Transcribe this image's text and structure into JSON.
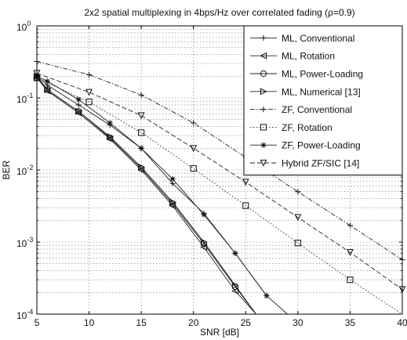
{
  "chart_data": {
    "type": "line",
    "title": "2x2 spatial multiplexing in 4bps/Hz over correlated fading (ρ=0.9)",
    "xlabel": "SNR [dB]",
    "ylabel": "BER",
    "x_scale": "linear",
    "y_scale": "log",
    "xlim": [
      5,
      40
    ],
    "ylim": [
      0.0001,
      1
    ],
    "x_ticks": [
      "5",
      "10",
      "15",
      "20",
      "25",
      "30",
      "35",
      "40"
    ],
    "y_ticks": [
      {
        "value": 1,
        "base": "10",
        "exp": "0"
      },
      {
        "value": 0.1,
        "base": "10",
        "exp": "-1"
      },
      {
        "value": 0.01,
        "base": "10",
        "exp": "-2"
      },
      {
        "value": 0.001,
        "base": "10",
        "exp": "-3"
      },
      {
        "value": 0.0001,
        "base": "10",
        "exp": "-4"
      }
    ],
    "grid": true,
    "legend_position": "top-right",
    "series": [
      {
        "name": "ML, Conventional",
        "marker": "plus",
        "dash": "solid",
        "x": [
          5,
          6,
          9,
          12,
          15,
          18,
          21,
          24,
          27
        ],
        "y": [
          0.2,
          0.15,
          0.08,
          0.042,
          0.02,
          0.0065,
          0.0025,
          0.0007,
          0.00018
        ]
      },
      {
        "name": "ML, Rotation",
        "marker": "triangle-left",
        "dash": "solid",
        "x": [
          5,
          6,
          9,
          12,
          15,
          18,
          21,
          24,
          26
        ],
        "y": [
          0.19,
          0.125,
          0.062,
          0.027,
          0.01,
          0.0032,
          0.00085,
          0.00021,
          0.0001
        ]
      },
      {
        "name": "ML, Power-Loading",
        "marker": "circle",
        "dash": "solid",
        "x": [
          5,
          6,
          9,
          12,
          15,
          18,
          21,
          24,
          26
        ],
        "y": [
          0.19,
          0.13,
          0.065,
          0.028,
          0.0105,
          0.0034,
          0.00095,
          0.00024,
          0.0001
        ]
      },
      {
        "name": "ML, Numerical [13]",
        "marker": "triangle-right",
        "dash": "solid",
        "x": [
          5,
          6,
          9,
          12,
          15,
          18,
          21,
          24,
          26
        ],
        "y": [
          0.2,
          0.13,
          0.065,
          0.029,
          0.011,
          0.0036,
          0.001,
          0.00025,
          0.0001
        ]
      },
      {
        "name": "ZF, Conventional",
        "marker": "plus",
        "dash": "dashdot",
        "x": [
          5,
          10,
          15,
          20,
          25,
          30,
          35,
          40
        ],
        "y": [
          0.32,
          0.21,
          0.11,
          0.045,
          0.015,
          0.005,
          0.0017,
          0.00057
        ]
      },
      {
        "name": "ZF, Rotation",
        "marker": "square",
        "dash": "dotted",
        "x": [
          5,
          10,
          15,
          20,
          25,
          30,
          35,
          40
        ],
        "y": [
          0.19,
          0.088,
          0.033,
          0.0105,
          0.0032,
          0.00097,
          0.0003,
          0.0001
        ]
      },
      {
        "name": "ZF, Power-Loading",
        "marker": "asterisk",
        "dash": "solid",
        "x": [
          5,
          6,
          9,
          12,
          15,
          18,
          21,
          24,
          27,
          29
        ],
        "y": [
          0.2,
          0.17,
          0.095,
          0.045,
          0.02,
          0.0075,
          0.0024,
          0.0007,
          0.00018,
          0.0001
        ]
      },
      {
        "name": "Hybrid ZF/SIC [14]",
        "marker": "triangle-down",
        "dash": "dashed",
        "x": [
          5,
          10,
          15,
          20,
          25,
          30,
          35,
          40
        ],
        "y": [
          0.22,
          0.12,
          0.057,
          0.02,
          0.0068,
          0.0022,
          0.00072,
          0.00022
        ]
      }
    ]
  }
}
